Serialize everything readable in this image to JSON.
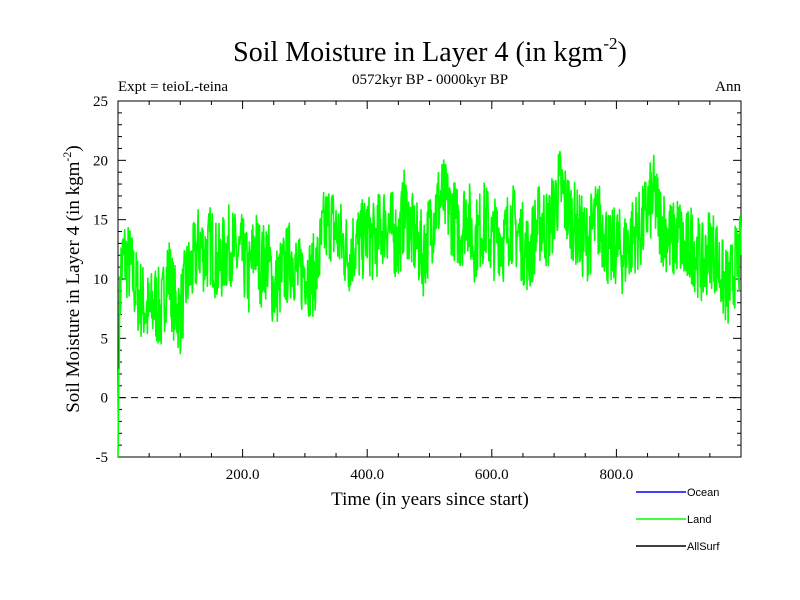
{
  "chart_data": {
    "type": "line",
    "title": "Soil Moisture in Layer 4 (in kgm",
    "title_sup": "-2",
    "title_close": ")",
    "subtitle": "0572kyr BP - 0000kyr BP",
    "left_label": "Expt = teioL-teina",
    "right_label": "Ann",
    "xlabel": "Time (in years since start)",
    "ylabel": "Soil Moisture in Layer 4 (in kgm",
    "ylabel_sup": "-2",
    "ylabel_close": ")",
    "xlim": [
      0,
      1000
    ],
    "ylim": [
      -5,
      25
    ],
    "xticks": [
      200,
      400,
      600,
      800
    ],
    "xtick_labels": [
      "200.0",
      "400.0",
      "600.0",
      "800.0"
    ],
    "yticks": [
      -5,
      0,
      5,
      10,
      15,
      20,
      25
    ],
    "ytick_labels": [
      "-5",
      "0",
      "5",
      "10",
      "15",
      "20",
      "25"
    ],
    "reference_line_y": 0,
    "legend": [
      {
        "name": "Ocean",
        "color": "#0000ff"
      },
      {
        "name": "Land",
        "color": "#00ff00"
      },
      {
        "name": "AllSurf",
        "color": "#000000"
      }
    ],
    "series": [
      {
        "name": "Land",
        "color": "#00ff00",
        "x": [
          0,
          2,
          5,
          10,
          20,
          30,
          40,
          50,
          60,
          70,
          80,
          90,
          100,
          110,
          120,
          130,
          140,
          150,
          160,
          170,
          180,
          190,
          200,
          210,
          220,
          230,
          240,
          250,
          260,
          270,
          280,
          290,
          300,
          310,
          320,
          330,
          340,
          350,
          360,
          370,
          380,
          390,
          400,
          410,
          420,
          430,
          440,
          450,
          460,
          470,
          480,
          490,
          500,
          510,
          520,
          530,
          540,
          550,
          560,
          570,
          580,
          590,
          600,
          610,
          620,
          630,
          640,
          650,
          660,
          670,
          680,
          690,
          700,
          710,
          720,
          730,
          740,
          750,
          760,
          770,
          780,
          790,
          800,
          810,
          820,
          830,
          840,
          850,
          860,
          870,
          880,
          890,
          900,
          910,
          920,
          930,
          940,
          950,
          960,
          970,
          980,
          990,
          1000
        ],
        "values": [
          -5,
          6,
          11,
          12,
          11,
          9,
          8,
          7,
          8,
          7,
          11,
          8,
          7,
          10,
          11,
          13,
          12,
          13,
          11,
          12,
          13,
          12,
          12,
          10,
          13,
          11,
          12,
          9,
          10,
          11,
          12,
          10,
          11,
          10,
          11,
          14,
          15,
          14,
          13,
          12,
          13,
          13,
          14,
          13,
          14,
          15,
          14,
          13,
          16,
          14,
          13,
          12,
          14,
          16,
          17,
          16,
          15,
          14,
          16,
          13,
          14,
          15,
          13,
          14,
          13,
          15,
          14,
          13,
          12,
          14,
          15,
          14,
          16,
          18,
          16,
          15,
          14,
          13,
          14,
          15,
          14,
          12,
          13,
          12,
          13,
          14,
          14,
          16,
          17,
          15,
          14,
          13,
          14,
          12,
          13,
          12,
          11,
          13,
          12,
          10,
          9,
          11,
          12
        ]
      }
    ]
  }
}
